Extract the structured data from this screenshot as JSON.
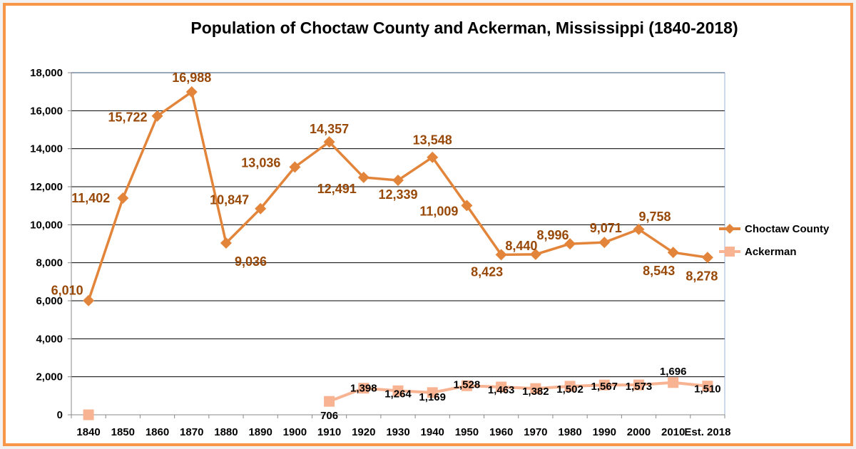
{
  "chart_data": {
    "type": "line",
    "title": "Population of Choctaw County and Ackerman, Mississippi (1840-2018)",
    "xlabel": "",
    "ylabel": "",
    "ylim": [
      0,
      18000
    ],
    "yticks": [
      0,
      2000,
      4000,
      6000,
      8000,
      10000,
      12000,
      14000,
      16000,
      18000
    ],
    "ytick_labels": [
      "0",
      "2,000",
      "4,000",
      "6,000",
      "8,000",
      "10,000",
      "12,000",
      "14,000",
      "16,000",
      "18,000"
    ],
    "categories": [
      "1840",
      "1850",
      "1860",
      "1870",
      "1880",
      "1890",
      "1900",
      "1910",
      "1920",
      "1930",
      "1940",
      "1950",
      "1960",
      "1970",
      "1980",
      "1990",
      "2000",
      "2010",
      "Est. 2018"
    ],
    "grid": "horizontal",
    "legend_position": "right",
    "series": [
      {
        "name": "Choctaw County",
        "color": "#e2853b",
        "label_color": "#984807",
        "marker": "diamond",
        "values": [
          6010,
          11402,
          15722,
          16988,
          9036,
          10847,
          13036,
          14357,
          12491,
          12339,
          13548,
          11009,
          8423,
          8440,
          8996,
          9071,
          9758,
          8543,
          8278
        ],
        "labels": [
          "6,010",
          "11,402",
          "15,722",
          "16,988",
          "9,036",
          "10,847",
          "13,036",
          "14,357",
          "12,491",
          "12,339",
          "13,548",
          "11,009",
          "8,423",
          "8,440",
          "8,996",
          "9,071",
          "9,758",
          "8,543",
          "8,278"
        ]
      },
      {
        "name": "Ackerman",
        "color": "#f7b392",
        "label_color": "#000000",
        "marker": "square",
        "values": [
          0,
          null,
          null,
          null,
          null,
          null,
          null,
          706,
          1398,
          1264,
          1169,
          1528,
          1463,
          1382,
          1502,
          1567,
          1573,
          1696,
          1510
        ],
        "labels": [
          "",
          "",
          "",
          "",
          "",
          "",
          "",
          "706",
          "1,398",
          "1,264",
          "1,169",
          "1,528",
          "1,463",
          "1,382",
          "1,502",
          "1,567",
          "1,573",
          "1,696",
          "1,510"
        ]
      }
    ]
  }
}
